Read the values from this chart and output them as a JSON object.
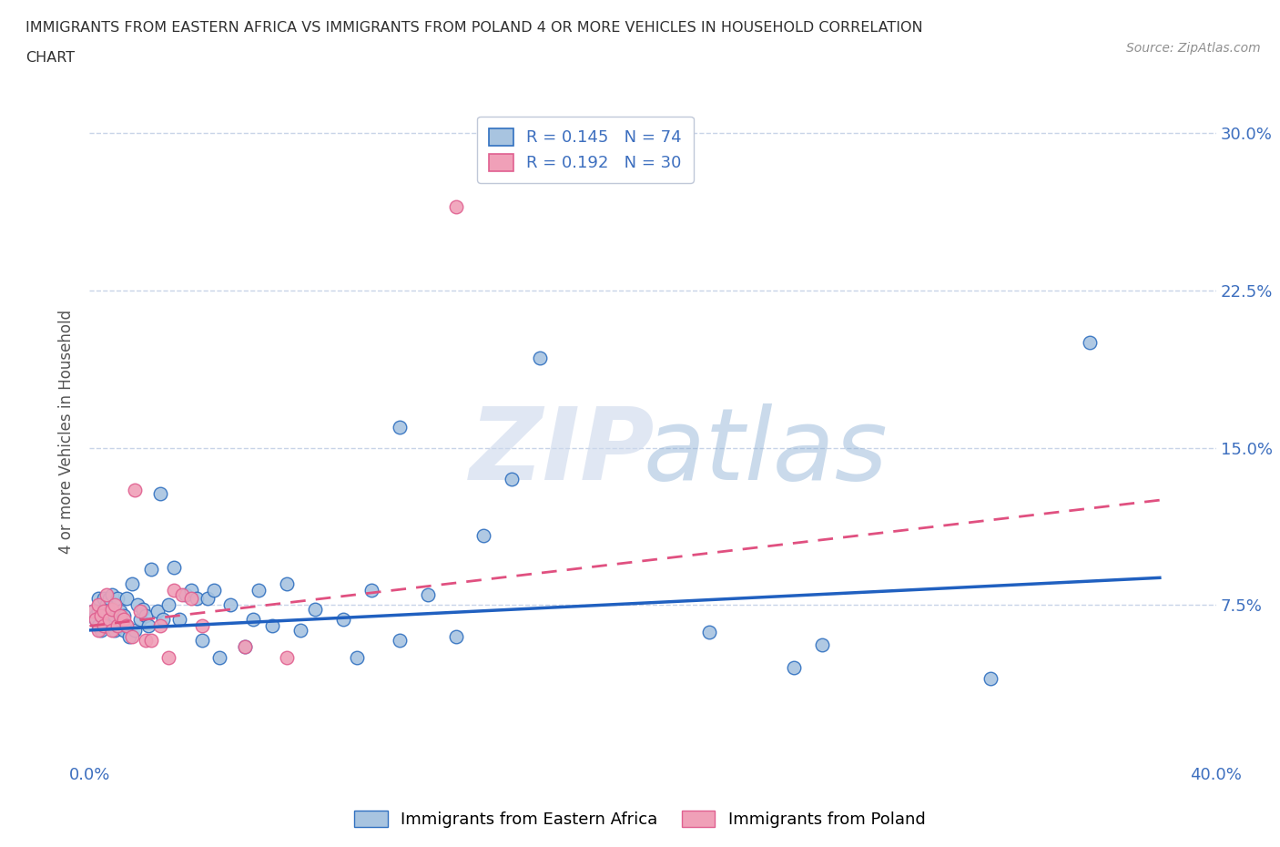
{
  "title_line1": "IMMIGRANTS FROM EASTERN AFRICA VS IMMIGRANTS FROM POLAND 4 OR MORE VEHICLES IN HOUSEHOLD CORRELATION",
  "title_line2": "CHART",
  "source_text": "Source: ZipAtlas.com",
  "ylabel": "4 or more Vehicles in Household",
  "xlim": [
    0.0,
    0.4
  ],
  "ylim": [
    0.0,
    0.315
  ],
  "ytick_positions": [
    0.075,
    0.15,
    0.225,
    0.3
  ],
  "ytick_labels": [
    "7.5%",
    "15.0%",
    "22.5%",
    "30.0%"
  ],
  "blue_x": [
    0.001,
    0.002,
    0.002,
    0.003,
    0.003,
    0.003,
    0.004,
    0.004,
    0.005,
    0.005,
    0.005,
    0.006,
    0.006,
    0.006,
    0.007,
    0.007,
    0.007,
    0.008,
    0.008,
    0.009,
    0.009,
    0.01,
    0.01,
    0.011,
    0.011,
    0.012,
    0.012,
    0.013,
    0.013,
    0.014,
    0.015,
    0.016,
    0.017,
    0.018,
    0.019,
    0.02,
    0.021,
    0.022,
    0.024,
    0.025,
    0.026,
    0.028,
    0.03,
    0.032,
    0.034,
    0.036,
    0.038,
    0.04,
    0.042,
    0.044,
    0.046,
    0.05,
    0.055,
    0.058,
    0.06,
    0.065,
    0.07,
    0.075,
    0.08,
    0.09,
    0.095,
    0.1,
    0.11,
    0.12,
    0.13,
    0.14,
    0.15,
    0.16,
    0.22,
    0.26,
    0.32,
    0.355,
    0.11,
    0.25
  ],
  "blue_y": [
    0.072,
    0.07,
    0.068,
    0.065,
    0.072,
    0.078,
    0.063,
    0.07,
    0.065,
    0.072,
    0.078,
    0.065,
    0.07,
    0.075,
    0.065,
    0.072,
    0.078,
    0.065,
    0.08,
    0.063,
    0.07,
    0.065,
    0.078,
    0.065,
    0.072,
    0.063,
    0.07,
    0.065,
    0.078,
    0.06,
    0.085,
    0.063,
    0.075,
    0.068,
    0.073,
    0.07,
    0.065,
    0.092,
    0.072,
    0.128,
    0.068,
    0.075,
    0.093,
    0.068,
    0.08,
    0.082,
    0.078,
    0.058,
    0.078,
    0.082,
    0.05,
    0.075,
    0.055,
    0.068,
    0.082,
    0.065,
    0.085,
    0.063,
    0.073,
    0.068,
    0.05,
    0.082,
    0.058,
    0.08,
    0.06,
    0.108,
    0.135,
    0.193,
    0.062,
    0.056,
    0.04,
    0.2,
    0.16,
    0.045
  ],
  "pink_x": [
    0.001,
    0.002,
    0.003,
    0.003,
    0.004,
    0.005,
    0.005,
    0.006,
    0.007,
    0.008,
    0.008,
    0.009,
    0.01,
    0.011,
    0.012,
    0.013,
    0.015,
    0.016,
    0.018,
    0.02,
    0.022,
    0.025,
    0.028,
    0.03,
    0.033,
    0.036,
    0.04,
    0.055,
    0.07,
    0.13
  ],
  "pink_y": [
    0.072,
    0.068,
    0.075,
    0.063,
    0.07,
    0.065,
    0.072,
    0.08,
    0.068,
    0.063,
    0.073,
    0.075,
    0.065,
    0.07,
    0.068,
    0.065,
    0.06,
    0.13,
    0.072,
    0.058,
    0.058,
    0.065,
    0.05,
    0.082,
    0.08,
    0.078,
    0.065,
    0.055,
    0.05,
    0.265
  ],
  "blue_line_start_x": 0.0,
  "blue_line_end_x": 0.38,
  "blue_line_start_y": 0.063,
  "blue_line_end_y": 0.088,
  "pink_line_start_x": 0.0,
  "pink_line_end_x": 0.38,
  "pink_line_start_y": 0.065,
  "pink_line_end_y": 0.125,
  "blue_color": "#a8c4e0",
  "pink_color": "#f0a0b8",
  "blue_edge_color": "#3070c0",
  "pink_edge_color": "#e06090",
  "blue_line_color": "#2060c0",
  "pink_line_color": "#e05080",
  "blue_r": 0.145,
  "blue_n": 74,
  "pink_r": 0.192,
  "pink_n": 30,
  "legend_label_blue": "Immigrants from Eastern Africa",
  "legend_label_pink": "Immigrants from Poland",
  "background_color": "#ffffff",
  "grid_color": "#c8d4e8",
  "axis_color": "#3d6fbf",
  "label_color": "#555555"
}
